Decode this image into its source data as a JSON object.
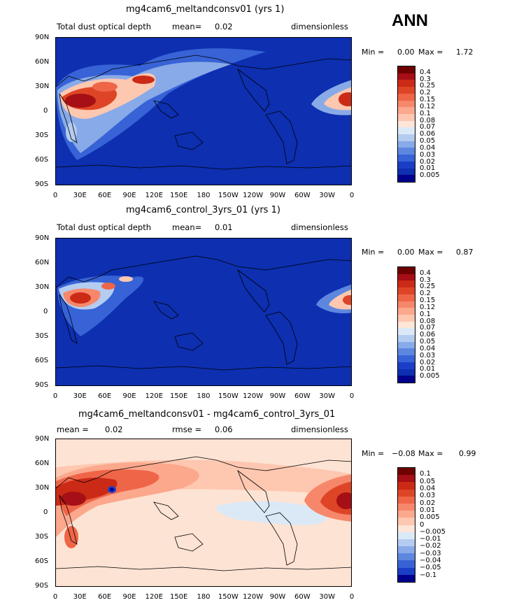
{
  "season": "ANN",
  "lat_ticks": [
    "90N",
    "60N",
    "30N",
    "0",
    "30S",
    "60S",
    "90S"
  ],
  "lon_ticks": [
    "0",
    "30E",
    "60E",
    "90E",
    "120E",
    "150E",
    "180",
    "150W",
    "120W",
    "90W",
    "60W",
    "30W",
    "0"
  ],
  "panels": [
    {
      "title": "mg4cam6_meltandconsv01 (yrs 1)",
      "left_label": "Total dust optical depth",
      "mean_label": "mean=",
      "mean_value": "0.02",
      "right_label": "dimensionless",
      "min_label": "Min =",
      "min_value": "0.00",
      "max_label": "Max =",
      "max_value": "1.72",
      "background_color": "#0d2fb0",
      "levels": [
        "0.4",
        "0.3",
        "0.25",
        "0.2",
        "0.15",
        "0.12",
        "0.1",
        "0.08",
        "0.07",
        "0.06",
        "0.05",
        "0.04",
        "0.03",
        "0.02",
        "0.01",
        "0.005"
      ],
      "colors": [
        "#6e0000",
        "#a50f15",
        "#cb2a16",
        "#de4526",
        "#ef6548",
        "#f7876a",
        "#fba88d",
        "#fdc7b0",
        "#fde5d8",
        "#dbe9f7",
        "#b4ccf0",
        "#88aae8",
        "#5d87df",
        "#3763d6",
        "#1a3ec6",
        "#0d2fb0",
        "#00008c"
      ]
    },
    {
      "title": "mg4cam6_control_3yrs_01 (yrs 1)",
      "left_label": "Total dust optical depth",
      "mean_label": "mean=",
      "mean_value": "0.01",
      "right_label": "dimensionless",
      "min_label": "Min =",
      "min_value": "0.00",
      "max_label": "Max =",
      "max_value": "0.87",
      "background_color": "#0d2fb0",
      "levels": [
        "0.4",
        "0.3",
        "0.25",
        "0.2",
        "0.15",
        "0.12",
        "0.1",
        "0.08",
        "0.07",
        "0.06",
        "0.05",
        "0.04",
        "0.03",
        "0.02",
        "0.01",
        "0.005"
      ],
      "colors": [
        "#6e0000",
        "#a50f15",
        "#cb2a16",
        "#de4526",
        "#ef6548",
        "#f7876a",
        "#fba88d",
        "#fdc7b0",
        "#fde5d8",
        "#dbe9f7",
        "#b4ccf0",
        "#88aae8",
        "#5d87df",
        "#3763d6",
        "#1a3ec6",
        "#0d2fb0",
        "#00008c"
      ]
    },
    {
      "title": "mg4cam6_meltandconsv01 - mg4cam6_control_3yrs_01",
      "left_label": "mean =",
      "mean_label": "",
      "mean_value": "0.02",
      "rmse_label": "rmse =",
      "rmse_value": "0.06",
      "right_label": "dimensionless",
      "min_label": "Min =",
      "min_value": "−0.08",
      "max_label": "Max =",
      "max_value": "0.99",
      "background_color": "#fde3d3",
      "levels": [
        "0.1",
        "0.05",
        "0.04",
        "0.03",
        "0.02",
        "0.01",
        "0.005",
        "0",
        "−0.005",
        "−0.01",
        "−0.02",
        "−0.03",
        "−0.04",
        "−0.05",
        "−0.1"
      ],
      "colors": [
        "#6e0000",
        "#a50f15",
        "#cb2a16",
        "#de4526",
        "#ef6548",
        "#f7876a",
        "#fba88d",
        "#fdc7b0",
        "#fde5d8",
        "#dbe9f7",
        "#b4ccf0",
        "#88aae8",
        "#5d87df",
        "#3763d6",
        "#1a3ec6",
        "#00008c"
      ]
    }
  ]
}
